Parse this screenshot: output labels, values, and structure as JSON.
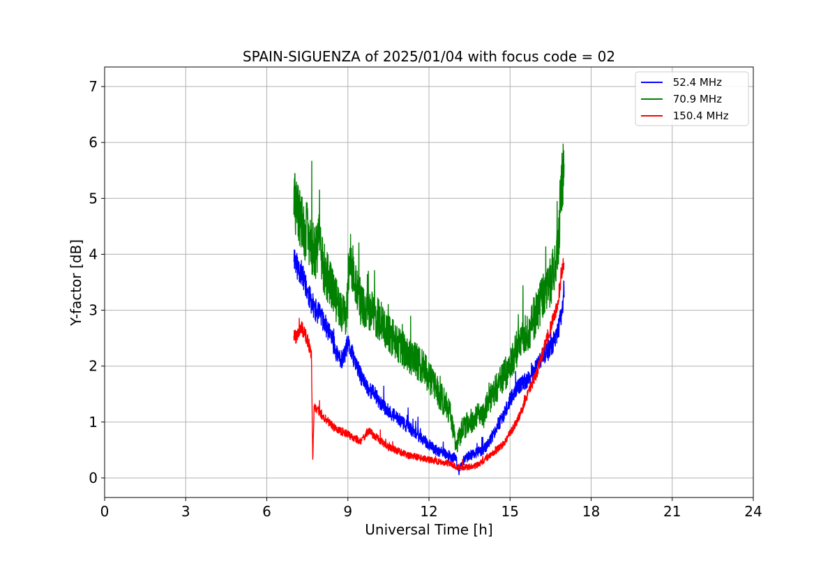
{
  "chart_data": {
    "type": "line",
    "title": "SPAIN-SIGUENZA of 2025/01/04 with focus code = 02",
    "xlabel": "Universal Time [h]",
    "ylabel": "Y-factor [dB]",
    "xlim": [
      0,
      24
    ],
    "ylim": [
      -0.35,
      7.35
    ],
    "xticks": [
      0,
      3,
      6,
      9,
      12,
      15,
      18,
      21,
      24
    ],
    "yticks": [
      0,
      1,
      2,
      3,
      4,
      5,
      6,
      7
    ],
    "xtick_labels": [
      "0",
      "3",
      "6",
      "9",
      "12",
      "15",
      "18",
      "21",
      "24"
    ],
    "ytick_labels": [
      "0",
      "1",
      "2",
      "3",
      "4",
      "5",
      "6",
      "7"
    ],
    "grid": true,
    "legend_position": "top-right",
    "series": [
      {
        "name": " 52.4 MHz",
        "color": "#0000ff",
        "x": [
          7.0,
          7.1,
          7.25,
          7.4,
          7.6,
          7.8,
          8.0,
          8.2,
          8.4,
          8.6,
          8.8,
          9.0,
          9.25,
          9.5,
          9.75,
          10.0,
          10.25,
          10.5,
          10.75,
          11.0,
          11.25,
          11.5,
          11.75,
          12.0,
          12.25,
          12.5,
          12.75,
          13.0,
          13.1,
          13.25,
          13.5,
          13.75,
          14.0,
          14.25,
          14.5,
          14.75,
          15.0,
          15.25,
          15.5,
          15.75,
          16.0,
          16.25,
          16.5,
          16.75,
          16.9,
          17.0
        ],
        "y": [
          4.0,
          3.8,
          3.7,
          3.5,
          3.2,
          3.0,
          2.9,
          2.7,
          2.5,
          2.2,
          2.1,
          2.4,
          2.1,
          1.8,
          1.6,
          1.5,
          1.3,
          1.2,
          1.1,
          1.0,
          0.9,
          0.8,
          0.7,
          0.6,
          0.5,
          0.45,
          0.4,
          0.35,
          0.1,
          0.3,
          0.4,
          0.45,
          0.5,
          0.65,
          0.9,
          1.1,
          1.4,
          1.6,
          1.7,
          1.8,
          2.0,
          2.2,
          2.3,
          2.6,
          2.9,
          3.4
        ]
      },
      {
        "name": " 70.9 MHz",
        "color": "#008000",
        "x": [
          7.0,
          7.1,
          7.25,
          7.4,
          7.5,
          7.6,
          7.8,
          7.95,
          8.1,
          8.3,
          8.5,
          8.7,
          8.9,
          9.0,
          9.1,
          9.3,
          9.5,
          9.75,
          10.0,
          10.25,
          10.5,
          10.75,
          11.0,
          11.25,
          11.5,
          11.75,
          12.0,
          12.25,
          12.5,
          12.75,
          13.0,
          13.25,
          13.5,
          13.75,
          14.0,
          14.25,
          14.5,
          14.75,
          15.0,
          15.25,
          15.5,
          15.75,
          16.0,
          16.25,
          16.5,
          16.75,
          16.9,
          17.0
        ],
        "y": [
          5.0,
          4.8,
          4.6,
          4.4,
          4.5,
          4.2,
          4.0,
          4.3,
          3.8,
          3.5,
          3.3,
          3.0,
          2.9,
          3.2,
          4.0,
          3.4,
          3.1,
          3.0,
          2.9,
          2.8,
          2.6,
          2.5,
          2.3,
          2.2,
          2.1,
          2.0,
          1.8,
          1.6,
          1.4,
          1.2,
          0.6,
          0.9,
          1.0,
          1.1,
          1.1,
          1.4,
          1.6,
          1.8,
          2.0,
          2.3,
          2.5,
          2.7,
          3.0,
          3.3,
          3.5,
          4.0,
          5.2,
          5.5
        ]
      },
      {
        "name": " 150.4 MHz",
        "color": "#ff0000",
        "x": [
          7.0,
          7.1,
          7.25,
          7.4,
          7.55,
          7.65,
          7.7,
          7.75,
          7.9,
          8.1,
          8.3,
          8.5,
          8.7,
          8.9,
          9.1,
          9.3,
          9.5,
          9.75,
          10.0,
          10.25,
          10.5,
          10.75,
          11.0,
          11.25,
          11.5,
          11.75,
          12.0,
          12.25,
          12.5,
          12.75,
          13.0,
          13.25,
          13.5,
          13.75,
          14.0,
          14.25,
          14.5,
          14.75,
          15.0,
          15.25,
          15.5,
          15.75,
          16.0,
          16.25,
          16.5,
          16.75,
          16.9,
          17.0
        ],
        "y": [
          2.6,
          2.5,
          2.7,
          2.6,
          2.4,
          2.2,
          0.3,
          1.3,
          1.2,
          1.1,
          1.0,
          0.9,
          0.85,
          0.8,
          0.75,
          0.7,
          0.65,
          0.85,
          0.75,
          0.65,
          0.55,
          0.5,
          0.45,
          0.4,
          0.38,
          0.35,
          0.32,
          0.3,
          0.28,
          0.26,
          0.2,
          0.18,
          0.2,
          0.22,
          0.3,
          0.4,
          0.5,
          0.6,
          0.8,
          1.0,
          1.3,
          1.6,
          1.9,
          2.3,
          2.7,
          3.1,
          3.6,
          3.9
        ]
      }
    ]
  }
}
